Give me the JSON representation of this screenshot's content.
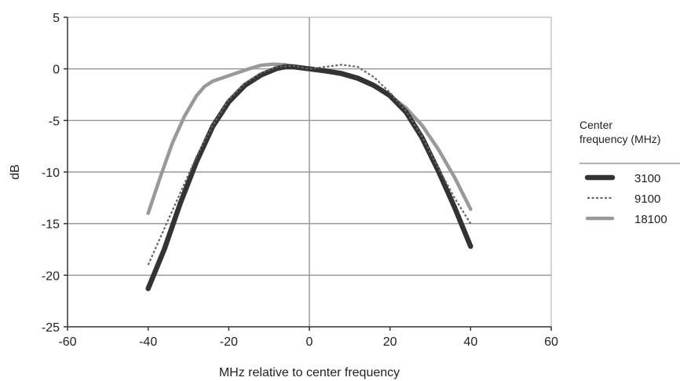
{
  "chart_data": {
    "type": "line",
    "title": "",
    "xlabel": "MHz relative to center frequency",
    "ylabel": "dB",
    "xlim": [
      -60,
      60
    ],
    "ylim": [
      -25,
      5
    ],
    "xticks": [
      -60,
      -40,
      -20,
      0,
      20,
      40,
      60
    ],
    "yticks": [
      5,
      0,
      -5,
      -10,
      -15,
      -20,
      -25
    ],
    "xtick_labels": [
      "-60",
      "-40",
      "-20",
      "0",
      "20",
      "40",
      "60"
    ],
    "ytick_labels": [
      "5",
      "0",
      "-5",
      "-10",
      "-15",
      "-20",
      "-25"
    ],
    "grid": "horizontal",
    "legend": {
      "title_lines": [
        "Center",
        "frequency (MHz)"
      ],
      "placement": "right"
    },
    "series": [
      {
        "name": "3100",
        "color": "#333333",
        "style": "solid-thick",
        "x": [
          -40,
          -36,
          -32,
          -28,
          -24,
          -20,
          -16,
          -12,
          -8,
          -6,
          -4,
          0,
          4,
          8,
          12,
          16,
          20,
          24,
          28,
          32,
          36,
          40
        ],
        "y": [
          -21.3,
          -17.5,
          -13,
          -9,
          -5.6,
          -3.2,
          -1.6,
          -0.6,
          0.05,
          0.2,
          0.2,
          0,
          -0.2,
          -0.45,
          -0.9,
          -1.6,
          -2.6,
          -4.2,
          -6.7,
          -9.9,
          -13.4,
          -17.2
        ]
      },
      {
        "name": "9100",
        "color": "#666666",
        "style": "dotted",
        "x": [
          -40,
          -36,
          -32,
          -28,
          -24,
          -20,
          -16,
          -12,
          -8,
          -4,
          0,
          4,
          8,
          12,
          16,
          20,
          24,
          28,
          32,
          36,
          40
        ],
        "y": [
          -19,
          -15.5,
          -12,
          -8.5,
          -5.5,
          -3,
          -1.4,
          -0.4,
          0.2,
          0.3,
          0,
          0.2,
          0.4,
          0.2,
          -0.8,
          -2.3,
          -4.1,
          -6.6,
          -9.6,
          -12.5,
          -15
        ]
      },
      {
        "name": "18100",
        "color": "#999999",
        "style": "solid-medium",
        "x": [
          -40,
          -37,
          -34,
          -31,
          -28,
          -26,
          -24,
          -21,
          -18,
          -15,
          -12,
          -9,
          -6,
          -3,
          0,
          4,
          8,
          12,
          16,
          20,
          24,
          28,
          32,
          36,
          40
        ],
        "y": [
          -14,
          -10.5,
          -7.2,
          -4.6,
          -2.6,
          -1.7,
          -1.2,
          -0.8,
          -0.4,
          0,
          0.35,
          0.45,
          0.4,
          0.15,
          0,
          -0.2,
          -0.55,
          -1,
          -1.7,
          -2.6,
          -3.8,
          -5.5,
          -7.8,
          -10.5,
          -13.6
        ]
      }
    ]
  }
}
